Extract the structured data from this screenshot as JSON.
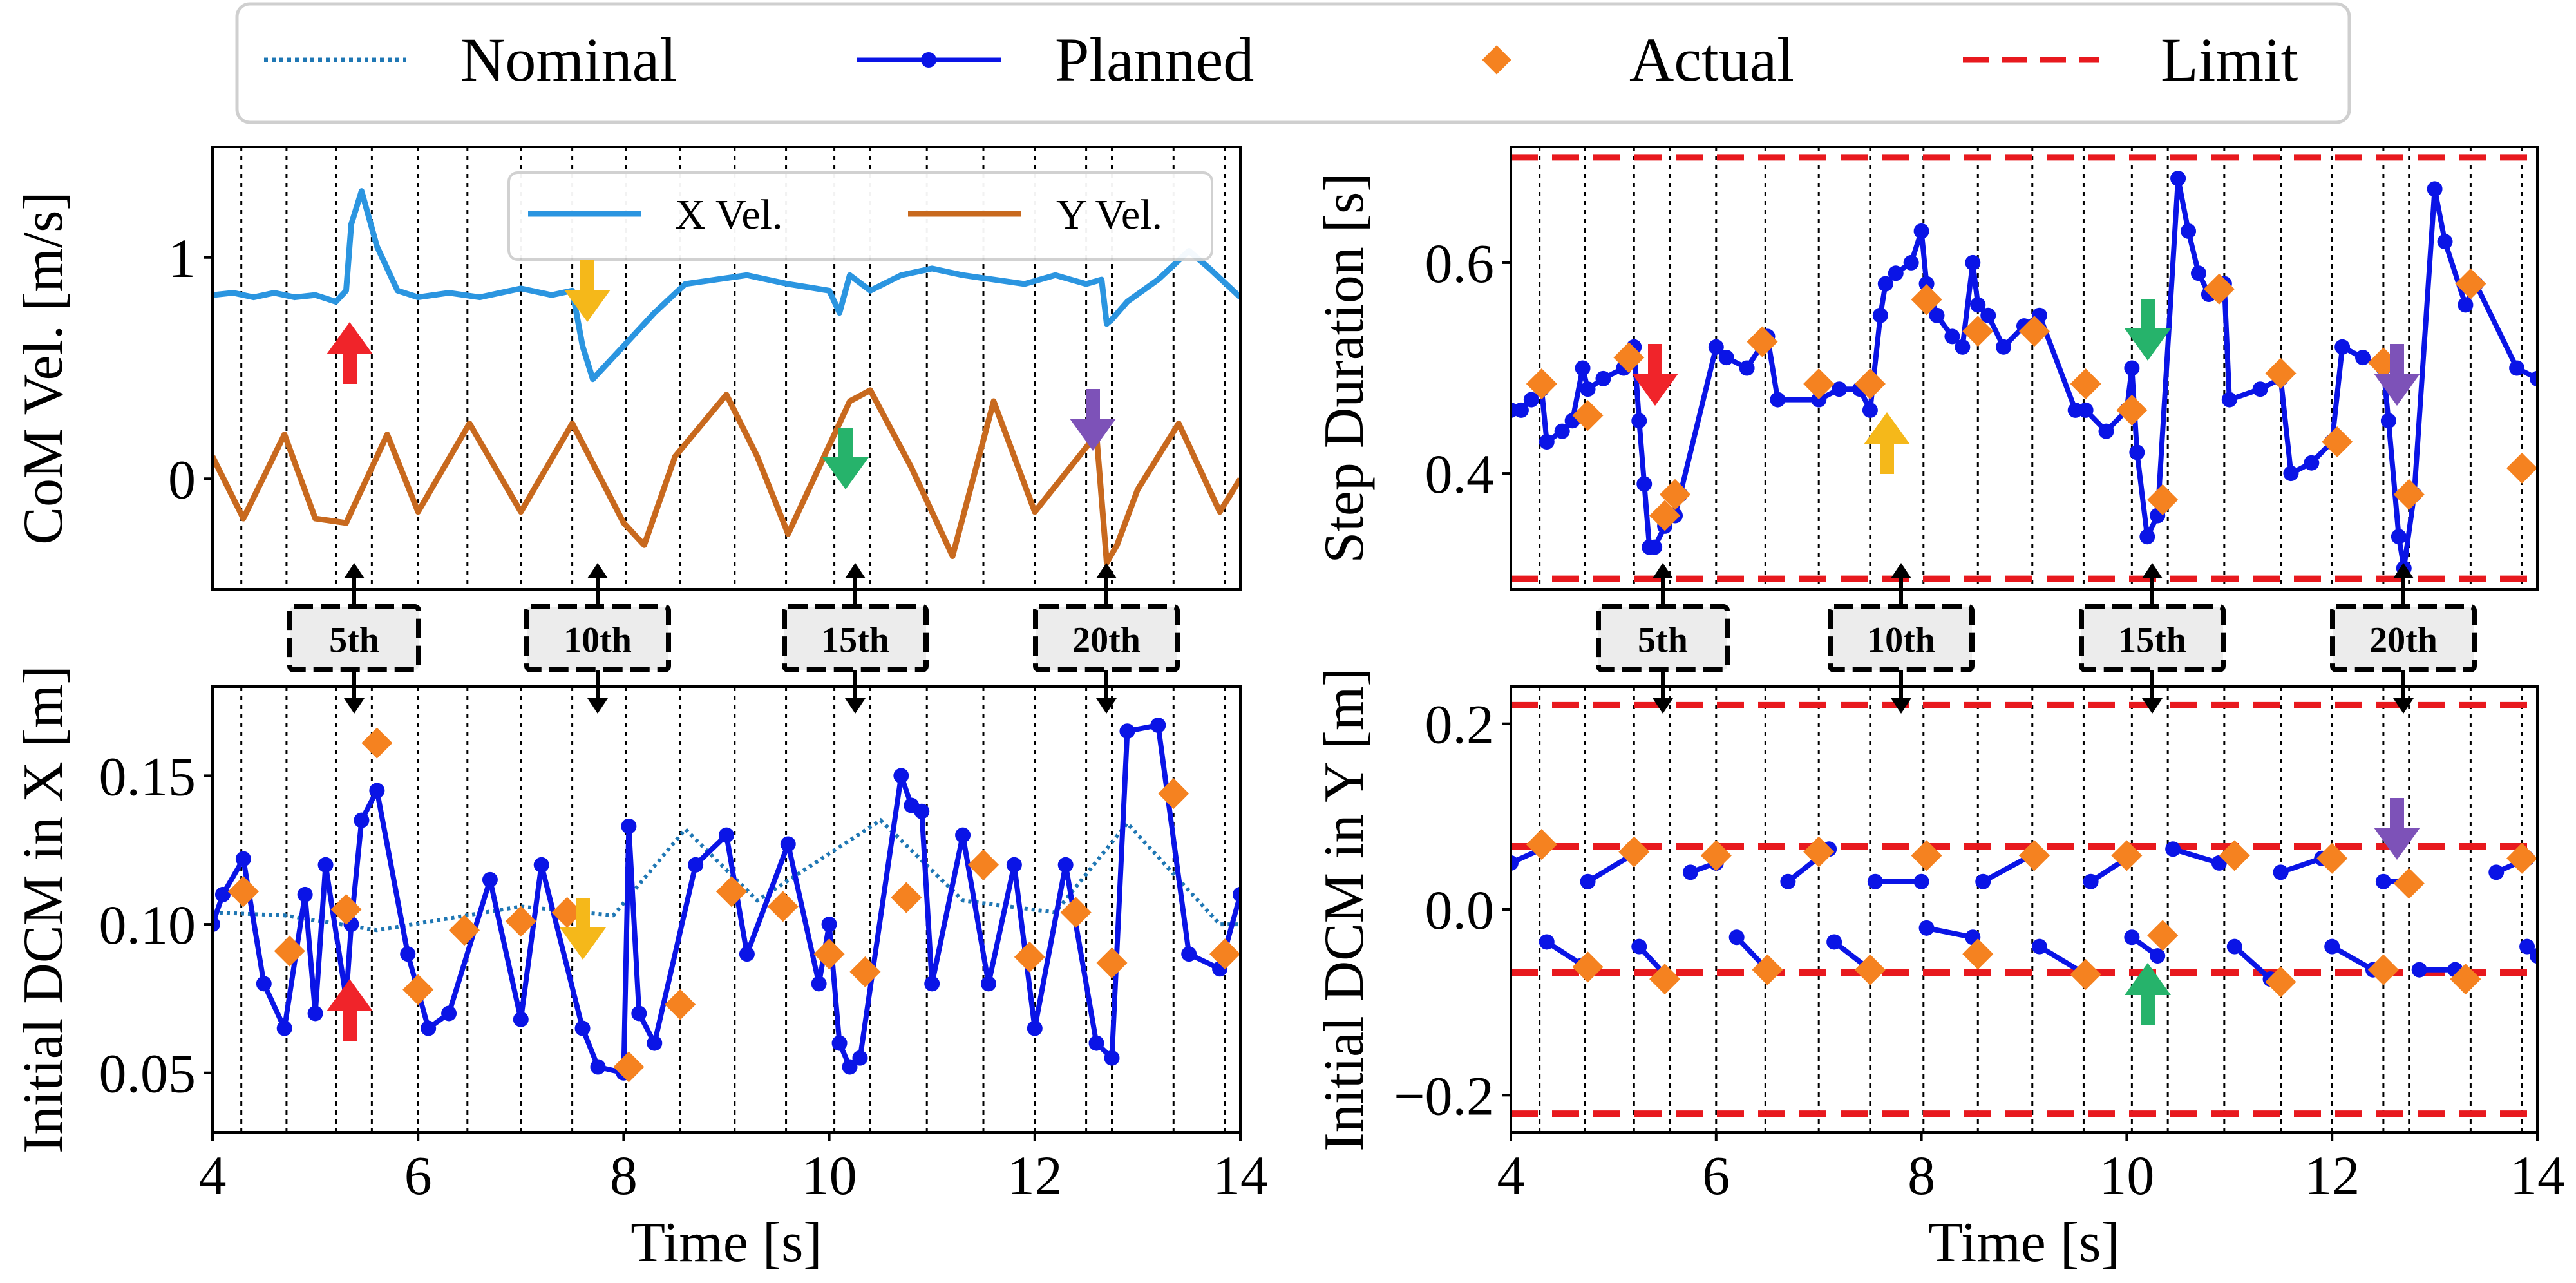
{
  "legend": {
    "nominal": "Nominal",
    "planned": "Planned",
    "actual": "Actual",
    "limit": "Limit"
  },
  "colors": {
    "nominal": "#1f77b4",
    "planned": "#0a14e6",
    "actual": "#f58220",
    "limit": "#e8191e",
    "x_vel": "#2b95e0",
    "y_vel": "#c8691e",
    "arrow_red": "#f0242a",
    "arrow_yellow": "#f5b81a",
    "arrow_green": "#26b36b",
    "arrow_purple": "#7d52b8"
  },
  "step_labels": [
    "5th",
    "10th",
    "15th",
    "20th"
  ],
  "chart_data": [
    {
      "id": "com_vel",
      "type": "line",
      "ylabel": "CoM Vel. [m/s]",
      "xlabel": "",
      "xlim": [
        4,
        14
      ],
      "ylim": [
        -0.5,
        1.5
      ],
      "yticks": [
        "0",
        "1"
      ],
      "ytick_values": [
        0,
        1
      ],
      "legend_labels": [
        "X Vel.",
        "Y Vel."
      ],
      "series": [
        {
          "name": "X Vel.",
          "x": [
            4,
            4.2,
            4.4,
            4.6,
            4.8,
            5.0,
            5.2,
            5.3,
            5.35,
            5.45,
            5.6,
            5.8,
            6.0,
            6.3,
            6.6,
            7.0,
            7.3,
            7.5,
            7.6,
            7.7,
            7.8,
            8.0,
            8.3,
            8.6,
            8.9,
            9.2,
            9.6,
            10.0,
            10.1,
            10.2,
            10.4,
            10.7,
            11.0,
            11.3,
            11.6,
            11.9,
            12.2,
            12.5,
            12.65,
            12.7,
            12.75,
            12.9,
            13.2,
            13.5,
            13.7,
            14.0
          ],
          "y": [
            0.83,
            0.84,
            0.82,
            0.84,
            0.82,
            0.83,
            0.8,
            0.85,
            1.15,
            1.3,
            1.05,
            0.85,
            0.82,
            0.84,
            0.82,
            0.86,
            0.83,
            0.85,
            0.6,
            0.45,
            0.5,
            0.6,
            0.75,
            0.88,
            0.9,
            0.92,
            0.88,
            0.85,
            0.75,
            0.92,
            0.85,
            0.92,
            0.95,
            0.92,
            0.9,
            0.88,
            0.92,
            0.88,
            0.9,
            0.7,
            0.72,
            0.8,
            0.9,
            1.03,
            0.95,
            0.82
          ]
        },
        {
          "name": "Y Vel.",
          "x": [
            4,
            4.3,
            4.7,
            5.0,
            5.3,
            5.7,
            6.0,
            6.5,
            7.0,
            7.5,
            8.0,
            8.2,
            8.5,
            9.0,
            9.3,
            9.6,
            10.2,
            10.4,
            10.8,
            11.2,
            11.6,
            12.0,
            12.6,
            12.7,
            12.8,
            13.0,
            13.4,
            13.8,
            14.0
          ],
          "y": [
            0.1,
            -0.18,
            0.2,
            -0.18,
            -0.2,
            0.2,
            -0.15,
            0.25,
            -0.15,
            0.25,
            -0.2,
            -0.3,
            0.1,
            0.38,
            0.1,
            -0.25,
            0.35,
            0.4,
            0.05,
            -0.35,
            0.35,
            -0.15,
            0.2,
            -0.38,
            -0.3,
            -0.05,
            0.25,
            -0.15,
            0.0
          ]
        }
      ]
    },
    {
      "id": "step_duration",
      "type": "line",
      "ylabel": "Step Duration [s]",
      "xlabel": "",
      "xlim": [
        4,
        14
      ],
      "ylim": [
        0.29,
        0.71
      ],
      "yticks": [
        "0.4",
        "0.6"
      ],
      "ytick_values": [
        0.4,
        0.6
      ],
      "series": [
        {
          "name": "Limit",
          "y_const": [
            0.3,
            0.7
          ]
        },
        {
          "name": "Planned",
          "x": [
            4.0,
            4.1,
            4.2,
            4.3,
            4.35,
            4.5,
            4.6,
            4.7,
            4.75,
            4.9,
            5.1,
            5.2,
            5.25,
            5.3,
            5.35,
            5.4,
            5.5,
            5.6,
            5.65,
            6.0,
            6.1,
            6.3,
            6.5,
            6.6,
            7.0,
            7.2,
            7.4,
            7.5,
            7.6,
            7.65,
            7.75,
            7.9,
            8.0,
            8.05,
            8.15,
            8.3,
            8.4,
            8.5,
            8.55,
            8.65,
            8.8,
            9.0,
            9.15,
            9.5,
            9.6,
            9.8,
            10.0,
            10.05,
            10.1,
            10.2,
            10.3,
            10.5,
            10.6,
            10.7,
            10.8,
            10.95,
            11.0,
            11.3,
            11.5,
            11.6,
            11.8,
            12.0,
            12.1,
            12.3,
            12.5,
            12.55,
            12.65,
            12.7,
            12.8,
            13.0,
            13.1,
            13.3,
            13.4,
            13.8,
            14.0
          ],
          "y": [
            0.46,
            0.46,
            0.47,
            0.48,
            0.43,
            0.44,
            0.45,
            0.5,
            0.48,
            0.49,
            0.5,
            0.52,
            0.45,
            0.39,
            0.33,
            0.33,
            0.35,
            0.36,
            0.38,
            0.52,
            0.51,
            0.5,
            0.53,
            0.47,
            0.47,
            0.48,
            0.48,
            0.46,
            0.55,
            0.58,
            0.59,
            0.6,
            0.63,
            0.58,
            0.55,
            0.53,
            0.52,
            0.6,
            0.56,
            0.55,
            0.52,
            0.54,
            0.55,
            0.46,
            0.46,
            0.44,
            0.46,
            0.5,
            0.42,
            0.34,
            0.36,
            0.68,
            0.63,
            0.59,
            0.57,
            0.58,
            0.47,
            0.48,
            0.49,
            0.4,
            0.41,
            0.43,
            0.52,
            0.51,
            0.5,
            0.45,
            0.34,
            0.31,
            0.38,
            0.67,
            0.62,
            0.56,
            0.58,
            0.5,
            0.49
          ]
        },
        {
          "name": "Actual",
          "x": [
            4.3,
            4.75,
            5.15,
            5.5,
            5.6,
            6.45,
            7.0,
            7.5,
            8.05,
            8.55,
            9.1,
            9.6,
            10.05,
            10.35,
            10.9,
            11.5,
            12.05,
            12.5,
            12.75,
            13.35,
            13.85
          ],
          "y": [
            0.485,
            0.455,
            0.51,
            0.36,
            0.38,
            0.525,
            0.485,
            0.485,
            0.565,
            0.535,
            0.535,
            0.485,
            0.46,
            0.375,
            0.575,
            0.495,
            0.43,
            0.505,
            0.38,
            0.58,
            0.405
          ]
        }
      ]
    },
    {
      "id": "dcm_x",
      "type": "line",
      "ylabel": "Initial DCM in X [m]",
      "xlabel": "Time [s]",
      "xlim": [
        4,
        14
      ],
      "ylim": [
        0.03,
        0.18
      ],
      "xticks": [
        "4",
        "6",
        "8",
        "10",
        "12",
        "14"
      ],
      "xtick_values": [
        4,
        6,
        8,
        10,
        12,
        14
      ],
      "yticks": [
        "0.05",
        "0.10",
        "0.15"
      ],
      "ytick_values": [
        0.05,
        0.1,
        0.15
      ],
      "series": [
        {
          "name": "Nominal",
          "x": [
            4.0,
            4.7,
            5.6,
            7.0,
            7.9,
            8.6,
            9.3,
            10.5,
            11.3,
            12.2,
            12.9,
            13.8,
            14.0
          ],
          "y": [
            0.104,
            0.103,
            0.098,
            0.106,
            0.103,
            0.132,
            0.108,
            0.135,
            0.108,
            0.104,
            0.134,
            0.1,
            0.1
          ]
        },
        {
          "name": "Planned",
          "x": [
            4.0,
            4.1,
            4.3,
            4.5,
            4.7,
            4.9,
            5.0,
            5.1,
            5.3,
            5.35,
            5.45,
            5.6,
            5.9,
            6.1,
            6.3,
            6.7,
            7.0,
            7.2,
            7.6,
            7.75,
            8.0,
            8.05,
            8.15,
            8.3,
            8.7,
            9.0,
            9.2,
            9.6,
            9.9,
            10.0,
            10.1,
            10.2,
            10.3,
            10.7,
            10.8,
            10.9,
            11.0,
            11.3,
            11.55,
            11.8,
            12.0,
            12.3,
            12.6,
            12.75,
            12.9,
            13.2,
            13.5,
            13.8,
            14.0
          ],
          "y": [
            0.1,
            0.11,
            0.122,
            0.08,
            0.065,
            0.11,
            0.07,
            0.12,
            0.075,
            0.1,
            0.135,
            0.145,
            0.09,
            0.065,
            0.07,
            0.115,
            0.068,
            0.12,
            0.065,
            0.052,
            0.05,
            0.133,
            0.07,
            0.06,
            0.12,
            0.13,
            0.09,
            0.127,
            0.08,
            0.1,
            0.06,
            0.052,
            0.055,
            0.15,
            0.14,
            0.138,
            0.08,
            0.13,
            0.08,
            0.12,
            0.065,
            0.12,
            0.06,
            0.055,
            0.165,
            0.167,
            0.09,
            0.085,
            0.11
          ]
        },
        {
          "name": "Actual",
          "x": [
            4.3,
            4.75,
            5.3,
            5.6,
            6.0,
            6.45,
            7.0,
            7.45,
            8.05,
            8.55,
            9.05,
            9.55,
            10.0,
            10.35,
            10.75,
            11.5,
            11.95,
            12.4,
            12.75,
            13.35,
            13.85
          ],
          "y": [
            0.111,
            0.091,
            0.105,
            0.161,
            0.078,
            0.098,
            0.101,
            0.104,
            0.052,
            0.073,
            0.111,
            0.106,
            0.09,
            0.084,
            0.109,
            0.12,
            0.089,
            0.104,
            0.087,
            0.144,
            0.09
          ]
        }
      ]
    },
    {
      "id": "dcm_y",
      "type": "line",
      "ylabel": "Initial DCM in Y [m]",
      "xlabel": "Time [s]",
      "xlim": [
        4,
        14
      ],
      "ylim": [
        -0.24,
        0.24
      ],
      "xticks": [
        "4",
        "6",
        "8",
        "10",
        "12",
        "14"
      ],
      "xtick_values": [
        4,
        6,
        8,
        10,
        12,
        14
      ],
      "yticks": [
        "0.2",
        "0.0",
        "−0.2"
      ],
      "ytick_values": [
        0.2,
        0.0,
        -0.2
      ],
      "series": [
        {
          "name": "Limit",
          "y_const": [
            0.22,
            0.068,
            -0.068,
            -0.22
          ]
        },
        {
          "name": "Planned",
          "segments": [
            {
              "x": [
                4.0,
                4.3
              ],
              "y": [
                0.05,
                0.065
              ]
            },
            {
              "x": [
                4.35,
                4.7
              ],
              "y": [
                -0.035,
                -0.06
              ]
            },
            {
              "x": [
                4.75,
                5.2
              ],
              "y": [
                0.03,
                0.06
              ]
            },
            {
              "x": [
                5.25,
                5.5
              ],
              "y": [
                -0.04,
                -0.07
              ]
            },
            {
              "x": [
                5.75,
                6.0
              ],
              "y": [
                0.04,
                0.05
              ]
            },
            {
              "x": [
                6.2,
                6.5
              ],
              "y": [
                -0.03,
                -0.065
              ]
            },
            {
              "x": [
                6.7,
                7.1
              ],
              "y": [
                0.03,
                0.065
              ]
            },
            {
              "x": [
                7.15,
                7.5
              ],
              "y": [
                -0.035,
                -0.065
              ]
            },
            {
              "x": [
                7.55,
                8.0
              ],
              "y": [
                0.03,
                0.03
              ]
            },
            {
              "x": [
                8.05,
                8.5
              ],
              "y": [
                -0.02,
                -0.03
              ]
            },
            {
              "x": [
                8.6,
                9.1
              ],
              "y": [
                0.03,
                0.06
              ]
            },
            {
              "x": [
                9.15,
                9.6
              ],
              "y": [
                -0.04,
                -0.07
              ]
            },
            {
              "x": [
                9.65,
                10.0
              ],
              "y": [
                0.03,
                0.055
              ]
            },
            {
              "x": [
                10.05,
                10.3
              ],
              "y": [
                -0.03,
                -0.05
              ]
            },
            {
              "x": [
                10.45,
                10.9
              ],
              "y": [
                0.065,
                0.05
              ]
            },
            {
              "x": [
                11.05,
                11.4
              ],
              "y": [
                -0.04,
                -0.075
              ]
            },
            {
              "x": [
                11.5,
                11.9
              ],
              "y": [
                0.04,
                0.055
              ]
            },
            {
              "x": [
                12.0,
                12.4
              ],
              "y": [
                -0.04,
                -0.065
              ]
            },
            {
              "x": [
                12.5,
                12.75
              ],
              "y": [
                0.03,
                0.03
              ]
            },
            {
              "x": [
                12.85,
                13.2
              ],
              "y": [
                -0.065,
                -0.065
              ]
            },
            {
              "x": [
                13.6,
                13.9
              ],
              "y": [
                0.04,
                0.055
              ]
            },
            {
              "x": [
                13.9,
                14.0
              ],
              "y": [
                -0.04,
                -0.05
              ]
            }
          ]
        },
        {
          "name": "Actual",
          "x": [
            4.3,
            4.75,
            5.2,
            5.5,
            6.0,
            6.5,
            7.0,
            7.5,
            8.05,
            8.55,
            9.1,
            9.6,
            10.0,
            10.35,
            11.05,
            11.5,
            12.0,
            12.5,
            12.75,
            13.3,
            13.85
          ],
          "y": [
            0.07,
            -0.062,
            0.062,
            -0.075,
            0.058,
            -0.065,
            0.062,
            -0.065,
            0.058,
            -0.048,
            0.058,
            -0.07,
            0.058,
            -0.028,
            0.058,
            -0.078,
            0.055,
            -0.065,
            0.028,
            -0.075,
            0.055
          ]
        }
      ]
    }
  ]
}
